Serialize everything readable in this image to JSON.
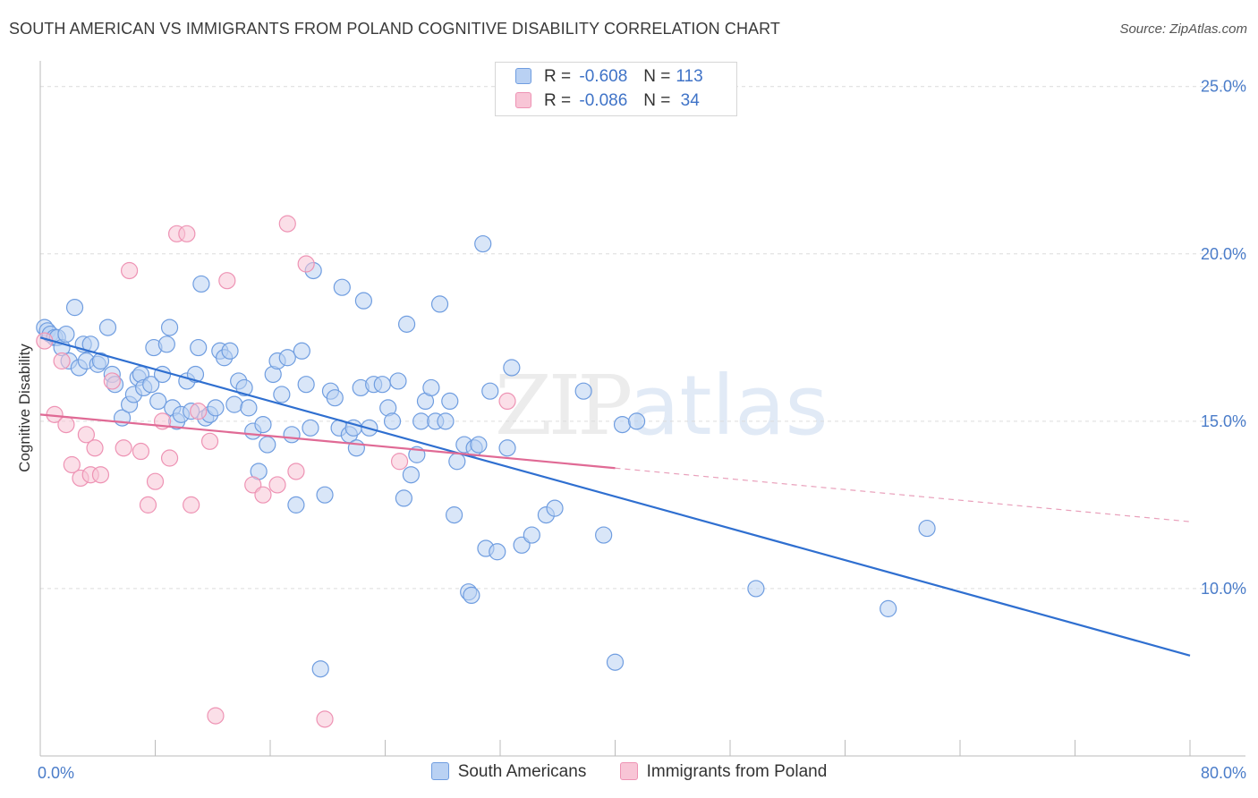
{
  "title": "SOUTH AMERICAN VS IMMIGRANTS FROM POLAND COGNITIVE DISABILITY CORRELATION CHART",
  "source": "Source: ZipAtlas.com",
  "watermark": {
    "zip": "ZIP",
    "atlas": "atlas"
  },
  "legend": {
    "rows": [
      {
        "r_label": "R =",
        "r_value": "-0.608",
        "n_label": "N =",
        "n_value": "113",
        "fill": "#b9d1f3",
        "stroke": "#6f9de0"
      },
      {
        "r_label": "R =",
        "r_value": "-0.086",
        "n_label": "N =",
        "n_value": " 34",
        "fill": "#f8c5d6",
        "stroke": "#ee93b4"
      }
    ]
  },
  "chart_data": {
    "type": "scatter",
    "title": "SOUTH AMERICAN VS IMMIGRANTS FROM POLAND COGNITIVE DISABILITY CORRELATION CHART",
    "xlabel": "",
    "ylabel": "Cognitive Disability",
    "xlim": [
      0,
      80
    ],
    "ylim": [
      5,
      25.5
    ],
    "x_tick_labels": [
      {
        "value": 0,
        "label": "0.0%"
      },
      {
        "value": 80,
        "label": "80.0%"
      }
    ],
    "y_tick_labels": [
      {
        "value": 10,
        "label": "10.0%"
      },
      {
        "value": 15,
        "label": "15.0%"
      },
      {
        "value": 20,
        "label": "20.0%"
      },
      {
        "value": 25,
        "label": "25.0%"
      }
    ],
    "grid": true,
    "series": [
      {
        "name": "South Americans",
        "color": "#6f9de0",
        "fill": "#b9d1f3",
        "trend": {
          "x": [
            0,
            80
          ],
          "y": [
            17.5,
            8.0
          ],
          "dashed_from": null
        },
        "points": [
          [
            0.3,
            17.8
          ],
          [
            0.5,
            17.7
          ],
          [
            0.7,
            17.6
          ],
          [
            1.0,
            17.5
          ],
          [
            1.2,
            17.5
          ],
          [
            1.5,
            17.2
          ],
          [
            1.8,
            17.6
          ],
          [
            2.0,
            16.8
          ],
          [
            2.4,
            18.4
          ],
          [
            2.7,
            16.6
          ],
          [
            3.0,
            17.3
          ],
          [
            3.2,
            16.8
          ],
          [
            3.5,
            17.3
          ],
          [
            4.0,
            16.7
          ],
          [
            4.2,
            16.8
          ],
          [
            4.7,
            17.8
          ],
          [
            5.0,
            16.4
          ],
          [
            5.2,
            16.1
          ],
          [
            5.7,
            15.1
          ],
          [
            6.2,
            15.5
          ],
          [
            6.5,
            15.8
          ],
          [
            6.8,
            16.3
          ],
          [
            7.0,
            16.4
          ],
          [
            7.2,
            16.0
          ],
          [
            7.7,
            16.1
          ],
          [
            7.9,
            17.2
          ],
          [
            8.2,
            15.6
          ],
          [
            8.5,
            16.4
          ],
          [
            8.8,
            17.3
          ],
          [
            9.0,
            17.8
          ],
          [
            9.2,
            15.4
          ],
          [
            9.5,
            15.0
          ],
          [
            9.8,
            15.2
          ],
          [
            10.2,
            16.2
          ],
          [
            10.5,
            15.3
          ],
          [
            10.8,
            16.4
          ],
          [
            11.0,
            17.2
          ],
          [
            11.2,
            19.1
          ],
          [
            11.5,
            15.1
          ],
          [
            11.8,
            15.2
          ],
          [
            12.2,
            15.4
          ],
          [
            12.5,
            17.1
          ],
          [
            12.8,
            16.9
          ],
          [
            13.2,
            17.1
          ],
          [
            13.5,
            15.5
          ],
          [
            13.8,
            16.2
          ],
          [
            14.2,
            16.0
          ],
          [
            14.5,
            15.4
          ],
          [
            14.8,
            14.7
          ],
          [
            15.2,
            13.5
          ],
          [
            15.5,
            14.9
          ],
          [
            15.8,
            14.3
          ],
          [
            16.2,
            16.4
          ],
          [
            16.5,
            16.8
          ],
          [
            16.8,
            15.8
          ],
          [
            17.2,
            16.9
          ],
          [
            17.5,
            14.6
          ],
          [
            17.8,
            12.5
          ],
          [
            18.2,
            17.1
          ],
          [
            18.5,
            16.1
          ],
          [
            18.8,
            14.8
          ],
          [
            19.0,
            19.5
          ],
          [
            19.5,
            7.6
          ],
          [
            19.8,
            12.8
          ],
          [
            20.2,
            15.9
          ],
          [
            20.5,
            15.7
          ],
          [
            20.8,
            14.8
          ],
          [
            21.0,
            19.0
          ],
          [
            21.5,
            14.6
          ],
          [
            21.8,
            14.8
          ],
          [
            22.0,
            14.2
          ],
          [
            22.3,
            16.0
          ],
          [
            22.5,
            18.6
          ],
          [
            22.9,
            14.8
          ],
          [
            23.2,
            16.1
          ],
          [
            23.8,
            16.1
          ],
          [
            24.2,
            15.4
          ],
          [
            24.5,
            15.0
          ],
          [
            24.9,
            16.2
          ],
          [
            25.3,
            12.7
          ],
          [
            25.5,
            17.9
          ],
          [
            25.8,
            13.4
          ],
          [
            26.2,
            14.0
          ],
          [
            26.5,
            15.0
          ],
          [
            26.8,
            15.6
          ],
          [
            27.2,
            16.0
          ],
          [
            27.5,
            15.0
          ],
          [
            27.8,
            18.5
          ],
          [
            28.2,
            15.0
          ],
          [
            28.5,
            15.6
          ],
          [
            28.8,
            12.2
          ],
          [
            29.0,
            13.8
          ],
          [
            29.5,
            14.3
          ],
          [
            29.8,
            9.9
          ],
          [
            30.0,
            9.8
          ],
          [
            30.2,
            14.2
          ],
          [
            30.5,
            14.3
          ],
          [
            30.8,
            20.3
          ],
          [
            31.0,
            11.2
          ],
          [
            31.3,
            15.9
          ],
          [
            31.8,
            11.1
          ],
          [
            32.5,
            14.2
          ],
          [
            32.8,
            16.6
          ],
          [
            33.5,
            11.3
          ],
          [
            34.2,
            11.6
          ],
          [
            35.2,
            12.2
          ],
          [
            35.8,
            12.4
          ],
          [
            37.8,
            15.9
          ],
          [
            39.2,
            11.6
          ],
          [
            40.0,
            7.8
          ],
          [
            40.5,
            14.9
          ],
          [
            41.5,
            15.0
          ],
          [
            49.8,
            10.0
          ],
          [
            59.0,
            9.4
          ],
          [
            61.7,
            11.8
          ]
        ]
      },
      {
        "name": "Immigrants from Poland",
        "color": "#ee93b4",
        "fill": "#f8c5d6",
        "trend": {
          "x": [
            0,
            40,
            80
          ],
          "y": [
            15.2,
            13.6,
            12.0
          ],
          "dashed_from": 40
        },
        "points": [
          [
            0.3,
            17.4
          ],
          [
            1.0,
            15.2
          ],
          [
            1.5,
            16.8
          ],
          [
            1.8,
            14.9
          ],
          [
            2.2,
            13.7
          ],
          [
            2.8,
            13.3
          ],
          [
            3.2,
            14.6
          ],
          [
            3.5,
            13.4
          ],
          [
            3.8,
            14.2
          ],
          [
            4.2,
            13.4
          ],
          [
            5.0,
            16.2
          ],
          [
            5.8,
            14.2
          ],
          [
            6.2,
            19.5
          ],
          [
            7.0,
            14.1
          ],
          [
            7.5,
            12.5
          ],
          [
            8.0,
            13.2
          ],
          [
            8.5,
            15.0
          ],
          [
            9.0,
            13.9
          ],
          [
            9.5,
            20.6
          ],
          [
            10.2,
            20.6
          ],
          [
            10.5,
            12.5
          ],
          [
            11.0,
            15.3
          ],
          [
            11.8,
            14.4
          ],
          [
            12.2,
            6.2
          ],
          [
            13.0,
            19.2
          ],
          [
            14.8,
            13.1
          ],
          [
            15.5,
            12.8
          ],
          [
            16.5,
            13.1
          ],
          [
            17.2,
            20.9
          ],
          [
            17.8,
            13.5
          ],
          [
            18.5,
            19.7
          ],
          [
            19.8,
            6.1
          ],
          [
            25.0,
            13.8
          ],
          [
            32.5,
            15.6
          ]
        ]
      }
    ]
  }
}
